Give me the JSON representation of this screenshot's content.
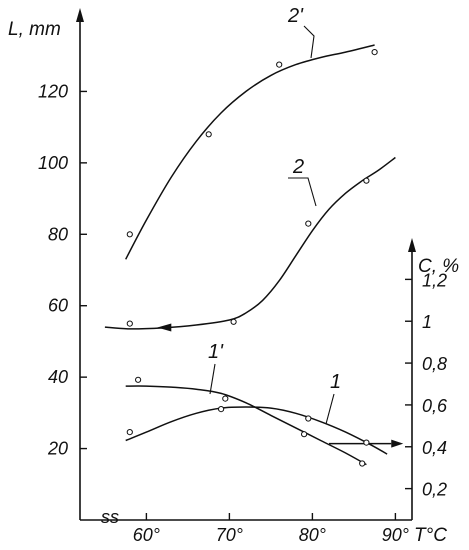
{
  "chart_data": {
    "type": "line",
    "title": "",
    "x": {
      "label": "T°C",
      "range": [
        52,
        92
      ],
      "ticks": [
        60,
        70,
        80,
        90
      ],
      "tick_labels": [
        "60°",
        "70°",
        "80°",
        "90°"
      ],
      "break_mark": "ss"
    },
    "y_left": {
      "label": "L, mm",
      "range": [
        0,
        140
      ],
      "ticks": [
        20,
        40,
        60,
        80,
        100,
        120
      ],
      "tick_labels": [
        "20",
        "40",
        "60",
        "80",
        "100",
        "120"
      ]
    },
    "y_right": {
      "label": "C, %",
      "range": [
        0.05,
        1.35
      ],
      "ticks": [
        0.2,
        0.4,
        0.6,
        0.8,
        1.0,
        1.2
      ],
      "tick_labels": [
        "0,2",
        "0,4",
        "0,6",
        "0,8",
        "1",
        "1,2"
      ]
    },
    "series": [
      {
        "name": "2'",
        "axis": "left",
        "points": [
          [
            58,
            80
          ],
          [
            67.5,
            108
          ],
          [
            76,
            127.5
          ],
          [
            87.5,
            131
          ]
        ],
        "curve": [
          [
            57.5,
            73
          ],
          [
            60,
            84
          ],
          [
            63,
            96
          ],
          [
            66,
            106
          ],
          [
            69,
            114
          ],
          [
            72,
            120
          ],
          [
            75,
            124.5
          ],
          [
            78,
            127.5
          ],
          [
            81,
            129.5
          ],
          [
            84,
            131
          ],
          [
            87.5,
            133
          ]
        ]
      },
      {
        "name": "2",
        "axis": "left",
        "points": [
          [
            58,
            55
          ],
          [
            70.5,
            55.5
          ],
          [
            79.5,
            83
          ],
          [
            86.5,
            95
          ]
        ],
        "curve": [
          [
            55,
            54
          ],
          [
            58,
            53.5
          ],
          [
            62,
            53.8
          ],
          [
            66,
            54.6
          ],
          [
            70,
            56
          ],
          [
            72,
            58
          ],
          [
            74,
            61.5
          ],
          [
            76,
            67
          ],
          [
            78,
            74
          ],
          [
            80,
            81
          ],
          [
            82,
            87
          ],
          [
            84,
            91.5
          ],
          [
            86,
            95
          ],
          [
            88,
            98
          ],
          [
            90,
            101.5
          ]
        ],
        "arrow": "left"
      },
      {
        "name": "1'",
        "axis": "right",
        "points": [
          [
            59,
            0.72
          ],
          [
            69.5,
            0.63
          ],
          [
            79,
            0.46
          ],
          [
            86,
            0.32
          ]
        ],
        "curve": [
          [
            57.5,
            0.69
          ],
          [
            60,
            0.69
          ],
          [
            63,
            0.685
          ],
          [
            66,
            0.675
          ],
          [
            69,
            0.655
          ],
          [
            72,
            0.61
          ],
          [
            75,
            0.55
          ],
          [
            78,
            0.49
          ],
          [
            81,
            0.43
          ],
          [
            84,
            0.37
          ],
          [
            86.5,
            0.315
          ]
        ]
      },
      {
        "name": "1",
        "axis": "right",
        "points": [
          [
            58,
            0.47
          ],
          [
            69,
            0.58
          ],
          [
            79.5,
            0.535
          ],
          [
            86.5,
            0.42
          ]
        ],
        "curve": [
          [
            57.5,
            0.43
          ],
          [
            60,
            0.47
          ],
          [
            63,
            0.52
          ],
          [
            66,
            0.56
          ],
          [
            69,
            0.585
          ],
          [
            72,
            0.59
          ],
          [
            75,
            0.585
          ],
          [
            78,
            0.56
          ],
          [
            81,
            0.52
          ],
          [
            84,
            0.47
          ],
          [
            87,
            0.41
          ],
          [
            89,
            0.365
          ]
        ],
        "arrow": "right"
      }
    ]
  }
}
